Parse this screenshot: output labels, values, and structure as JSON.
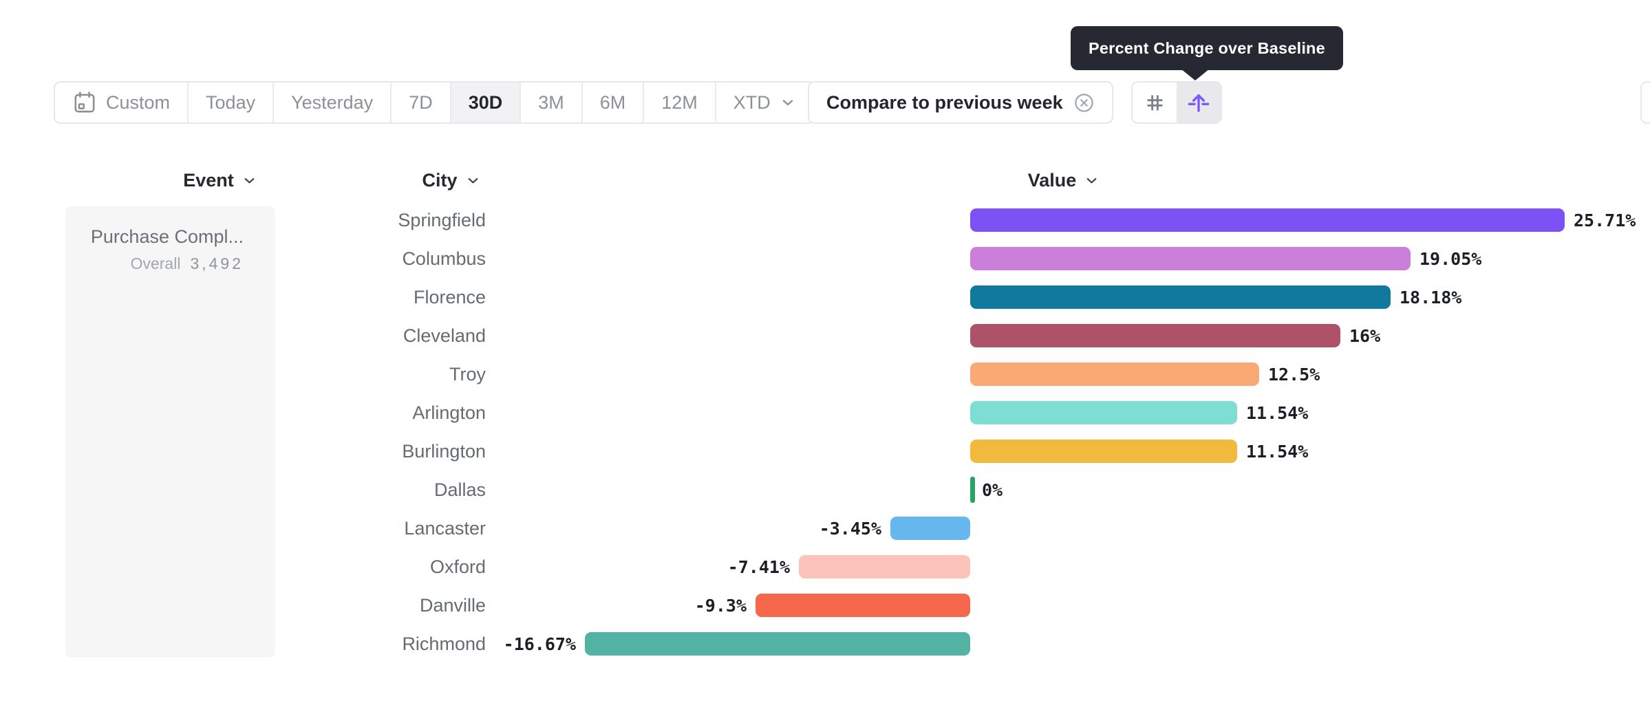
{
  "tooltip": {
    "text": "Percent Change over Baseline"
  },
  "toolbar": {
    "date_ranges": [
      {
        "label": "Custom",
        "selected": false,
        "icon": "calendar"
      },
      {
        "label": "Today",
        "selected": false
      },
      {
        "label": "Yesterday",
        "selected": false
      },
      {
        "label": "7D",
        "selected": false
      },
      {
        "label": "30D",
        "selected": true
      },
      {
        "label": "3M",
        "selected": false
      },
      {
        "label": "6M",
        "selected": false
      },
      {
        "label": "12M",
        "selected": false
      },
      {
        "label": "XTD",
        "selected": false,
        "icon": "chevron-down"
      }
    ],
    "compare": {
      "label": "Compare to previous week",
      "icon": "circle-x"
    },
    "view_toggle": [
      {
        "name": "grid-view",
        "icon": "hash",
        "selected": false
      },
      {
        "name": "percent-change-view",
        "icon": "baseline-arrow",
        "selected": true
      }
    ]
  },
  "columns": {
    "event": "Event",
    "city": "City",
    "value": "Value"
  },
  "event_panel": {
    "event_name": "Purchase Compl...",
    "overall_label": "Overall",
    "overall_value": "3,492"
  },
  "chart_data": {
    "type": "bar",
    "orientation": "horizontal",
    "title": "Percent Change over Baseline",
    "unit": "percent",
    "grid": false,
    "baseline": 0,
    "value_range": [
      -16.67,
      25.71
    ],
    "categories": [
      "Springfield",
      "Columbus",
      "Florence",
      "Cleveland",
      "Troy",
      "Arlington",
      "Burlington",
      "Dallas",
      "Lancaster",
      "Oxford",
      "Danville",
      "Richmond"
    ],
    "values": [
      25.71,
      19.05,
      18.18,
      16,
      12.5,
      11.54,
      11.54,
      0,
      -3.45,
      -7.41,
      -9.3,
      -16.67
    ],
    "labels": [
      "25.71%",
      "19.05%",
      "18.18%",
      "16%",
      "12.5%",
      "11.54%",
      "11.54%",
      "0%",
      "-3.45%",
      "-7.41%",
      "-9.3%",
      "-16.67%"
    ],
    "colors": [
      "#7C52F5",
      "#CC7EDB",
      "#12799E",
      "#AE5269",
      "#FAA874",
      "#7FDED4",
      "#F2B93F",
      "#27A567",
      "#67B7EF",
      "#FBC3BA",
      "#F5684B",
      "#52B3A5"
    ]
  },
  "theme_colors": {
    "accent_purple": "#7B5BFF",
    "tooltip_bg": "#262932",
    "positive_max_color": "#7C52F5",
    "zero_tick_green": "#27A567"
  }
}
